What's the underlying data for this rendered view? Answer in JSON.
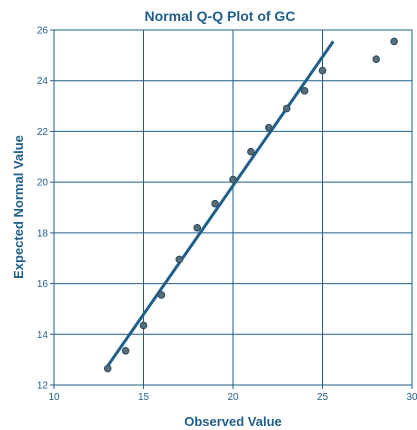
{
  "colors": {
    "primary": "#1f5f8b",
    "axis": "#1f5f8b",
    "grid": "#1f5f8b",
    "point_fill": "#546e7e",
    "point_stroke": "#2e4a5c",
    "background": "#ffffff"
  },
  "chart_data": {
    "type": "scatter",
    "title": "Normal Q-Q Plot of GC",
    "xlabel": "Observed Value",
    "ylabel": "Expected Normal Value",
    "xlim": [
      10,
      30
    ],
    "ylim": [
      12,
      26
    ],
    "xticks": [
      10,
      15,
      20,
      25,
      30
    ],
    "yticks": [
      12,
      14,
      16,
      18,
      20,
      22,
      24,
      26
    ],
    "grid": true,
    "points": [
      {
        "x": 13,
        "y": 12.65
      },
      {
        "x": 14,
        "y": 13.35
      },
      {
        "x": 15,
        "y": 14.35
      },
      {
        "x": 16,
        "y": 15.55
      },
      {
        "x": 17,
        "y": 16.95
      },
      {
        "x": 18,
        "y": 18.2
      },
      {
        "x": 19,
        "y": 19.15
      },
      {
        "x": 20,
        "y": 20.1
      },
      {
        "x": 21,
        "y": 21.2
      },
      {
        "x": 22,
        "y": 22.15
      },
      {
        "x": 23,
        "y": 22.9
      },
      {
        "x": 24,
        "y": 23.6
      },
      {
        "x": 25,
        "y": 24.4
      },
      {
        "x": 28,
        "y": 24.85
      },
      {
        "x": 29,
        "y": 25.55
      }
    ],
    "reference_line": {
      "x1": 12.9,
      "y1": 12.65,
      "x2": 25.6,
      "y2": 25.55
    }
  }
}
